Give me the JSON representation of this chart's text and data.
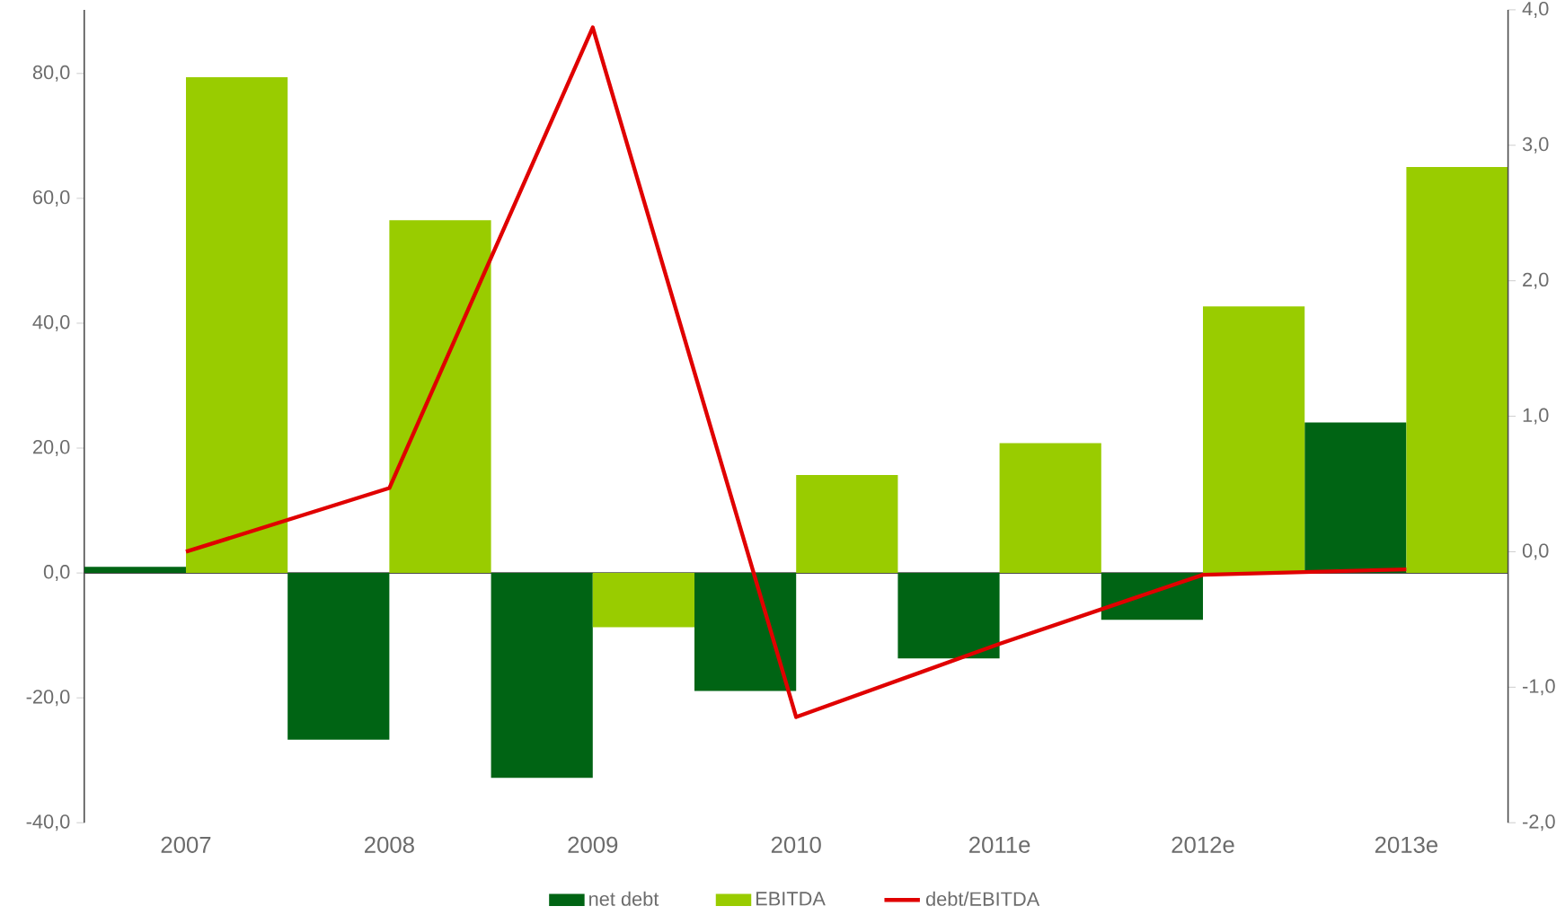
{
  "chart_data": {
    "type": "bar",
    "categories": [
      "2007",
      "2008",
      "2009",
      "2010",
      "2011e",
      "2012e",
      "2013e"
    ],
    "series": [
      {
        "name": "net debt",
        "color": "#006414",
        "values": [
          1.0,
          -26.7,
          -32.8,
          -18.9,
          -13.7,
          -7.5,
          24.1
        ]
      },
      {
        "name": "EBITDA",
        "color": "#99cc00",
        "values": [
          79.4,
          56.5,
          -8.7,
          15.7,
          20.8,
          42.7,
          65.0
        ]
      },
      {
        "name": "debt/EBITDA",
        "type": "line",
        "axis": "y2",
        "color": "#e00000",
        "values": [
          0.0,
          0.47,
          3.87,
          -1.22,
          -0.68,
          -0.17,
          -0.13
        ]
      }
    ],
    "ylim": [
      -40,
      90.2
    ],
    "yticks": [
      {
        "value": -40,
        "label": "-40,0"
      },
      {
        "value": -20,
        "label": "-20,0"
      },
      {
        "value": 0,
        "label": "0,0"
      },
      {
        "value": 20,
        "label": "20,0"
      },
      {
        "value": 40,
        "label": "40,0"
      },
      {
        "value": 60,
        "label": "60,0"
      },
      {
        "value": 80,
        "label": "80,0"
      }
    ],
    "y2lim": [
      -2,
      4
    ],
    "y2ticks": [
      {
        "value": -2,
        "label": "-2,0"
      },
      {
        "value": -1,
        "label": "-1,0"
      },
      {
        "value": 0,
        "label": "0,0"
      },
      {
        "value": 1,
        "label": "1,0"
      },
      {
        "value": 2,
        "label": "2,0"
      },
      {
        "value": 3,
        "label": "3,0"
      },
      {
        "value": 4,
        "label": "4,0"
      }
    ],
    "legend": "bottom"
  }
}
